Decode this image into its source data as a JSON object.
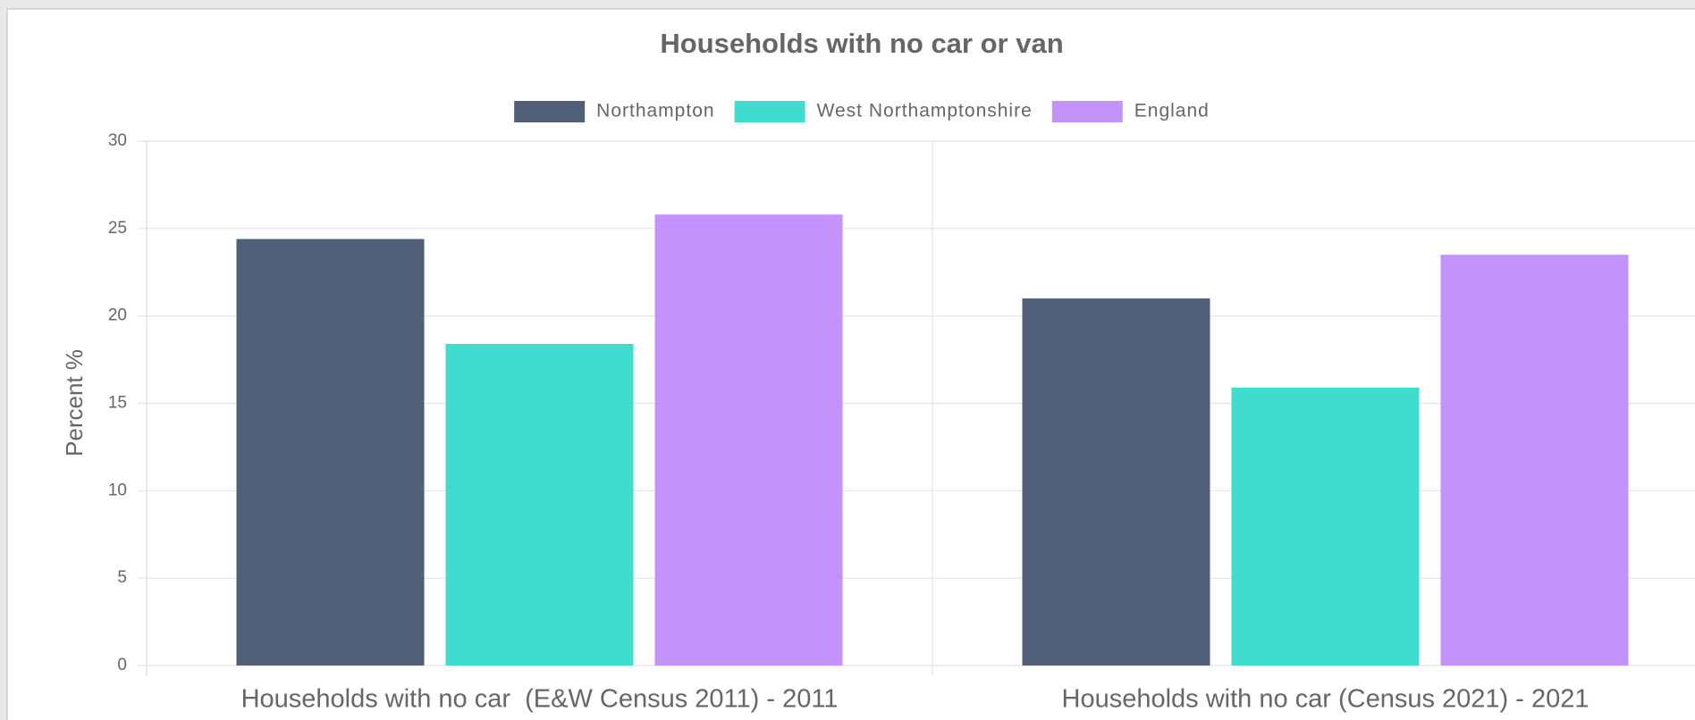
{
  "chart_data": {
    "type": "bar",
    "title": "Households with no car or van",
    "y_label": "Percent %",
    "categories": [
      "Households with no car  (E&W Census 2011) - 2011",
      "Households with no car (Census 2021) - 2021"
    ],
    "series": [
      {
        "name": "Northampton",
        "color": "#506079",
        "values": [
          24.4,
          21.0
        ]
      },
      {
        "name": "West Northamptonshire",
        "color": "#40dcd0",
        "values": [
          18.4,
          15.9
        ]
      },
      {
        "name": "England",
        "color": "#c393fb",
        "values": [
          25.8,
          23.5
        ]
      }
    ],
    "ylim": [
      0,
      30
    ],
    "yticks": [
      0,
      5,
      10,
      15,
      20,
      25,
      30
    ],
    "grid": true,
    "legend": "top"
  }
}
